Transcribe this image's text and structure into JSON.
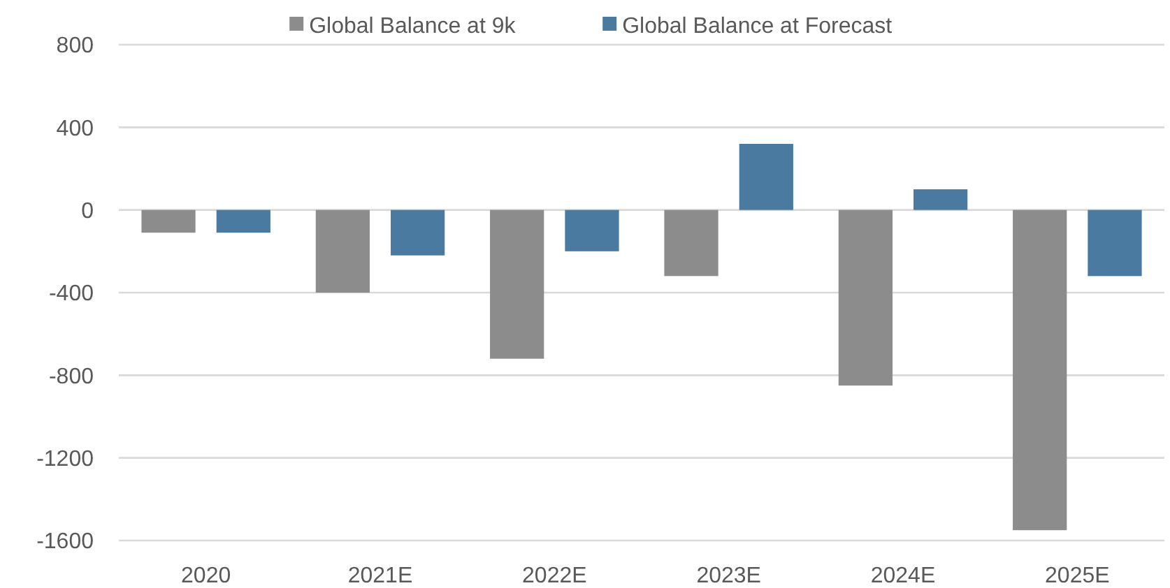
{
  "chart_data": {
    "type": "bar",
    "categories": [
      "2020",
      "2021E",
      "2022E",
      "2023E",
      "2024E",
      "2025E"
    ],
    "series": [
      {
        "name": "Global Balance at 9k",
        "color": "#8c8c8c",
        "values": [
          -110,
          -400,
          -720,
          -320,
          -850,
          -1550
        ]
      },
      {
        "name": "Global Balance at Forecast",
        "color": "#4a7aa0",
        "values": [
          -110,
          -220,
          -200,
          320,
          100,
          -320
        ]
      }
    ],
    "ylim": [
      -1600,
      800
    ],
    "yticks": [
      -1600,
      -1200,
      -800,
      -400,
      0,
      400,
      800
    ],
    "grid": "y",
    "legend": "top"
  }
}
